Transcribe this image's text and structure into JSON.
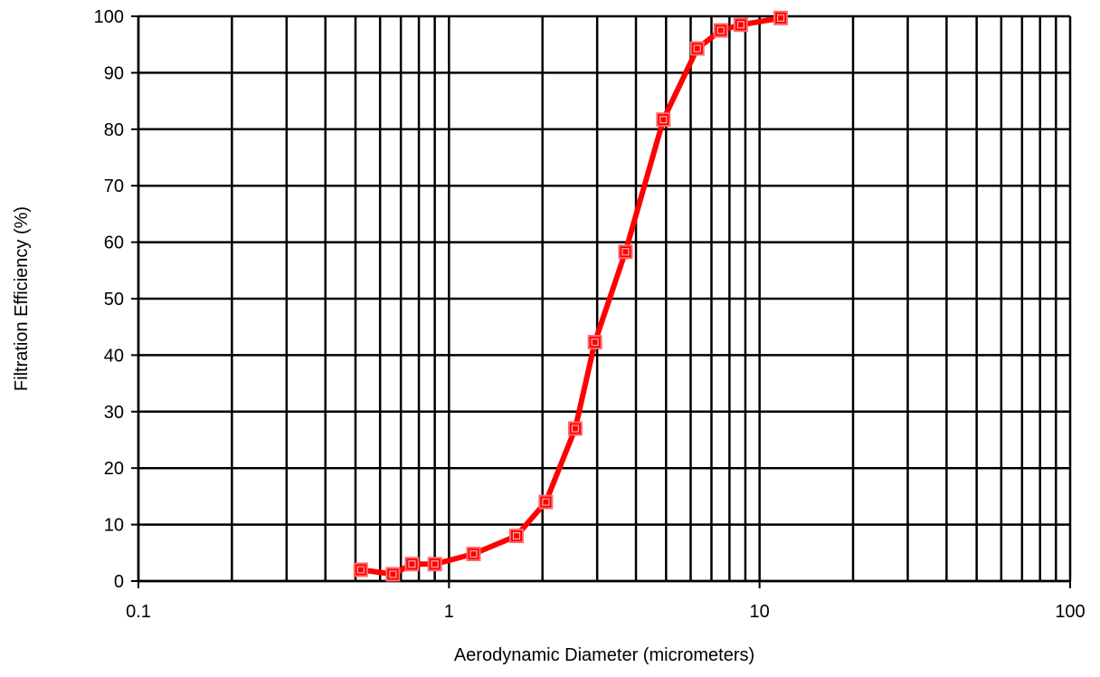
{
  "chart_data": {
    "type": "line",
    "title": "",
    "xlabel": "Aerodynamic Diameter (micrometers)",
    "ylabel": "Filtration Efficiency (%)",
    "xscale": "log",
    "xlim": [
      0.1,
      100
    ],
    "ylim": [
      0,
      100
    ],
    "grid": true,
    "legend": "none",
    "x_ticks": [
      "0.1",
      "1",
      "10",
      "100"
    ],
    "y_ticks": [
      "0",
      "10",
      "20",
      "30",
      "40",
      "50",
      "60",
      "70",
      "80",
      "90",
      "100"
    ],
    "series": [
      {
        "color": "#ff0000",
        "marker": "square",
        "x": [
          0.52,
          0.66,
          0.76,
          0.9,
          1.2,
          1.65,
          2.05,
          2.55,
          2.95,
          3.7,
          4.9,
          6.3,
          7.5,
          8.7,
          11.7
        ],
        "y": [
          2.0,
          1.2,
          3.0,
          3.0,
          4.8,
          8.0,
          14.0,
          27.0,
          42.3,
          58.3,
          81.7,
          94.3,
          97.5,
          98.5,
          99.7
        ]
      }
    ]
  }
}
